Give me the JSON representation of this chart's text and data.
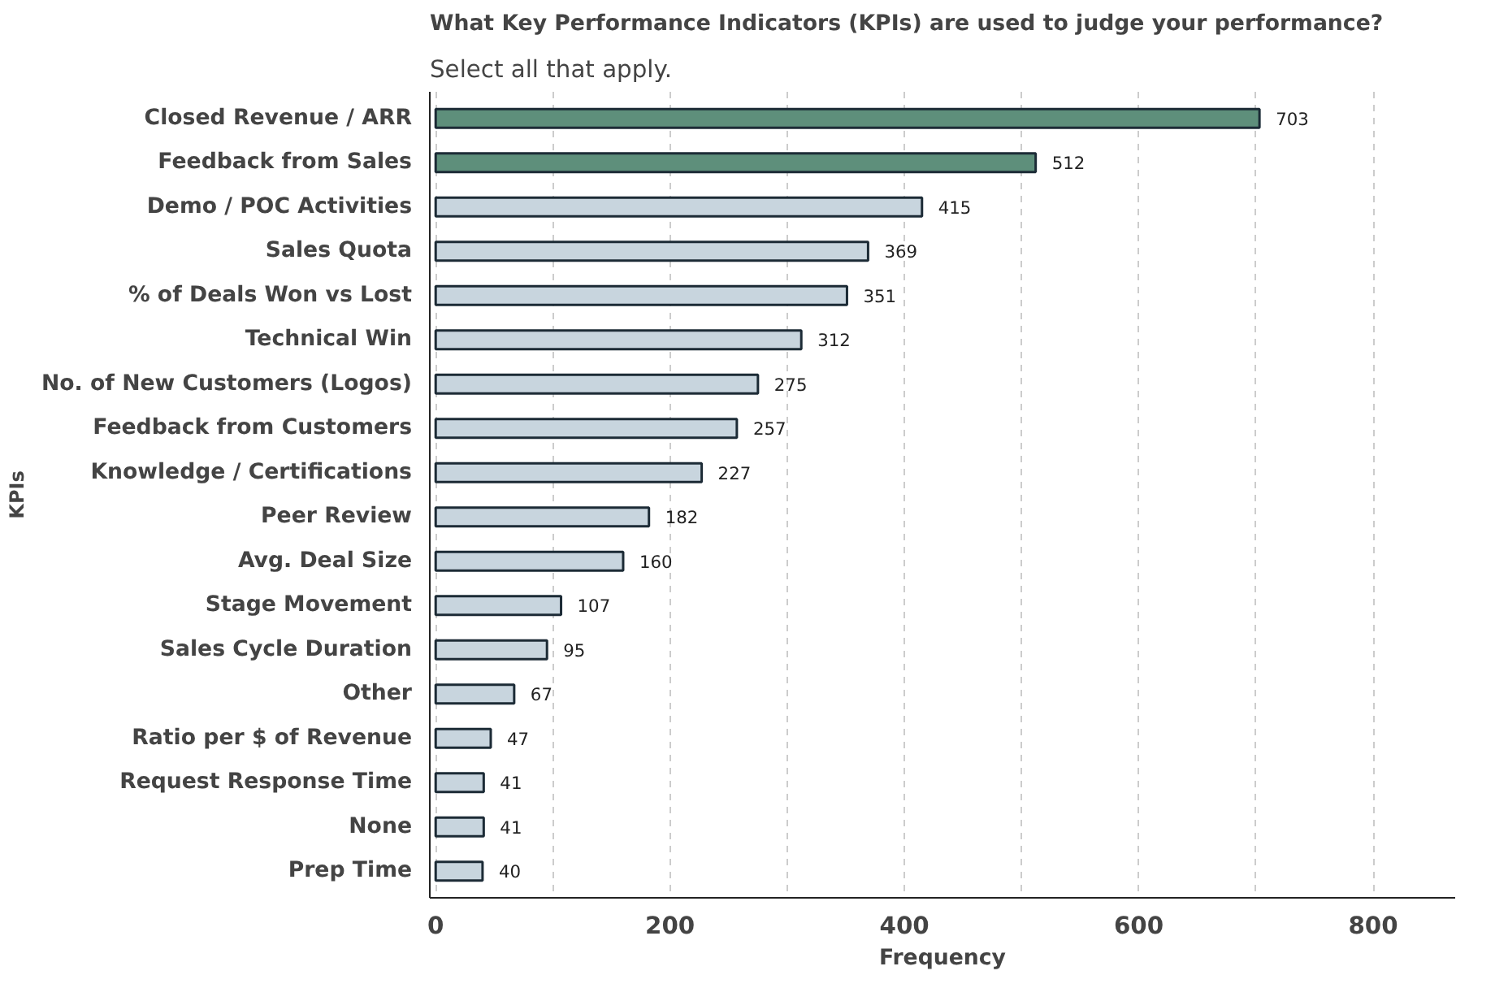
{
  "chart_data": {
    "type": "bar",
    "orientation": "horizontal",
    "title": "What Key Performance Indicators (KPIs) are used to judge your performance?",
    "subtitle": "Select all that apply.",
    "xlabel": "Frequency",
    "ylabel": "KPIs",
    "categories": [
      "Closed Revenue / ARR",
      "Feedback from Sales",
      "Demo / POC Activities",
      "Sales Quota",
      "% of Deals Won vs Lost",
      "Technical Win",
      "No. of New Customers (Logos)",
      "Feedback from Customers",
      "Knowledge / Certifications",
      "Peer Review",
      "Avg. Deal Size",
      "Stage Movement",
      "Sales Cycle Duration",
      "Other",
      "Ratio per $ of Revenue",
      "Request Response Time",
      "None",
      "Prep Time"
    ],
    "values": [
      703,
      512,
      415,
      369,
      351,
      312,
      275,
      257,
      227,
      182,
      160,
      107,
      95,
      67,
      47,
      41,
      41,
      40
    ],
    "colors": [
      "#5e8f7b",
      "#5e8f7b",
      "#c8d5de",
      "#c8d5de",
      "#c8d5de",
      "#c8d5de",
      "#c8d5de",
      "#c8d5de",
      "#c8d5de",
      "#c8d5de",
      "#c8d5de",
      "#c8d5de",
      "#c8d5de",
      "#c8d5de",
      "#c8d5de",
      "#c8d5de",
      "#c8d5de",
      "#c8d5de"
    ],
    "xlim": [
      -5,
      870
    ],
    "xticks": [
      0,
      {
        "value": 100,
        "label": null
      },
      200,
      {
        "value": 300,
        "label": null
      },
      400,
      {
        "value": 500,
        "label": null
      },
      600,
      {
        "value": 700,
        "label": null
      },
      800
    ],
    "grid": "x",
    "data_labels": true
  }
}
